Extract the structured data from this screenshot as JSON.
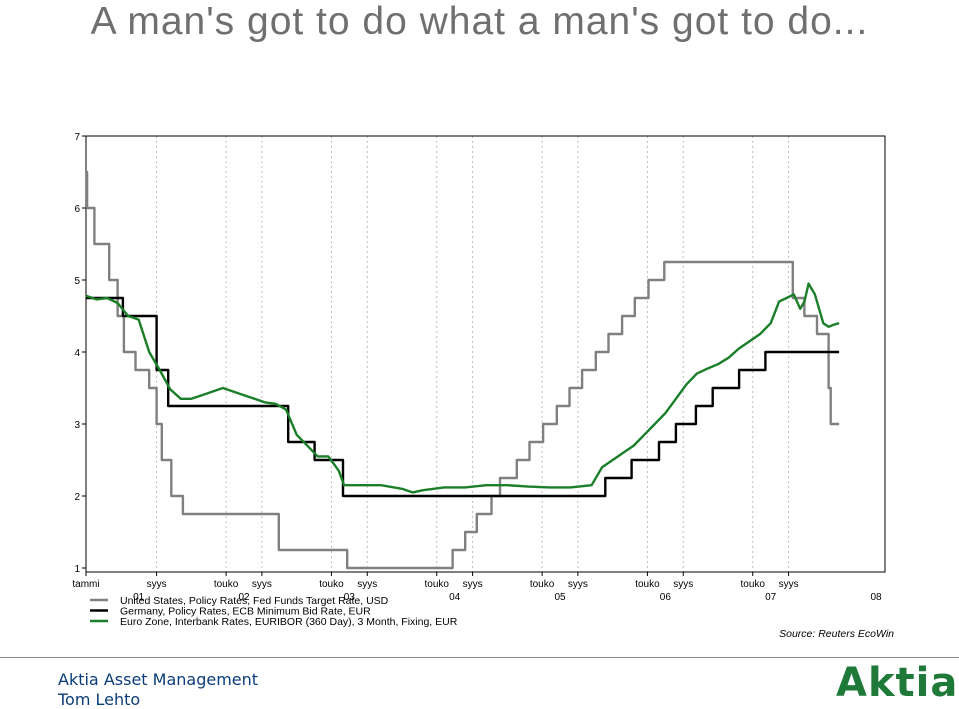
{
  "slide": {
    "title": "A man's got to do what a man's got to do...",
    "footer_company": "Aktia Asset Management",
    "footer_author": "Tom Lehto",
    "logo_text": "Aktia"
  },
  "chart_data": {
    "type": "line",
    "title": "",
    "xlabel": "",
    "ylabel": "",
    "ylim": [
      1,
      7
    ],
    "y_ticks": [
      "1",
      "2",
      "3",
      "4",
      "5",
      "6",
      "7"
    ],
    "x_range_years": [
      2001.0,
      2008.5
    ],
    "x_tick_labels_top": [
      {
        "t": 2001.0,
        "label": "tammi"
      },
      {
        "t": 2001.67,
        "label": "syys"
      },
      {
        "t": 2002.33,
        "label": "touko"
      },
      {
        "t": 2002.67,
        "label": "syys"
      },
      {
        "t": 2003.33,
        "label": "touko"
      },
      {
        "t": 2003.67,
        "label": "syys"
      },
      {
        "t": 2004.33,
        "label": "touko"
      },
      {
        "t": 2004.67,
        "label": "syys"
      },
      {
        "t": 2005.33,
        "label": "touko"
      },
      {
        "t": 2005.67,
        "label": "syys"
      },
      {
        "t": 2006.33,
        "label": "touko"
      },
      {
        "t": 2006.67,
        "label": "syys"
      },
      {
        "t": 2007.33,
        "label": "touko"
      },
      {
        "t": 2007.67,
        "label": "syys"
      }
    ],
    "x_tick_labels_bottom": [
      {
        "t": 2001.5,
        "label": "01"
      },
      {
        "t": 2002.5,
        "label": "02"
      },
      {
        "t": 2003.5,
        "label": "03"
      },
      {
        "t": 2004.5,
        "label": "04"
      },
      {
        "t": 2005.5,
        "label": "05"
      },
      {
        "t": 2006.5,
        "label": "06"
      },
      {
        "t": 2007.5,
        "label": "07"
      },
      {
        "t": 2008.5,
        "label": "08"
      }
    ],
    "grid": "vertical-dotted",
    "legend_position": "bottom-left",
    "source": "Source: Reuters EcoWin",
    "series": [
      {
        "name": "United States, Policy Rates, Fed Funds Target Rate, USD",
        "color": "#808080",
        "step": true,
        "points": [
          [
            2001.0,
            6.5
          ],
          [
            2001.01,
            6.0
          ],
          [
            2001.08,
            5.5
          ],
          [
            2001.22,
            5.0
          ],
          [
            2001.3,
            4.5
          ],
          [
            2001.36,
            4.0
          ],
          [
            2001.47,
            3.75
          ],
          [
            2001.6,
            3.5
          ],
          [
            2001.67,
            3.0
          ],
          [
            2001.72,
            2.5
          ],
          [
            2001.81,
            2.0
          ],
          [
            2001.92,
            1.75
          ],
          [
            2002.83,
            1.25
          ],
          [
            2003.48,
            1.0
          ],
          [
            2004.48,
            1.25
          ],
          [
            2004.6,
            1.5
          ],
          [
            2004.71,
            1.75
          ],
          [
            2004.85,
            2.0
          ],
          [
            2004.93,
            2.25
          ],
          [
            2005.09,
            2.5
          ],
          [
            2005.21,
            2.75
          ],
          [
            2005.34,
            3.0
          ],
          [
            2005.47,
            3.25
          ],
          [
            2005.59,
            3.5
          ],
          [
            2005.71,
            3.75
          ],
          [
            2005.84,
            4.0
          ],
          [
            2005.96,
            4.25
          ],
          [
            2006.09,
            4.5
          ],
          [
            2006.21,
            4.75
          ],
          [
            2006.34,
            5.0
          ],
          [
            2006.49,
            5.25
          ],
          [
            2007.71,
            4.75
          ],
          [
            2007.82,
            4.5
          ],
          [
            2007.94,
            4.25
          ],
          [
            2008.05,
            3.5
          ],
          [
            2008.07,
            3.0
          ],
          [
            2008.15,
            3.0
          ]
        ]
      },
      {
        "name": "Germany, Policy Rates, ECB Minimum Bid Rate, EUR",
        "color": "#000000",
        "step": true,
        "points": [
          [
            2001.0,
            4.75
          ],
          [
            2001.35,
            4.5
          ],
          [
            2001.67,
            3.75
          ],
          [
            2001.78,
            3.25
          ],
          [
            2002.92,
            2.75
          ],
          [
            2003.17,
            2.5
          ],
          [
            2003.44,
            2.0
          ],
          [
            2005.93,
            2.25
          ],
          [
            2006.18,
            2.5
          ],
          [
            2006.44,
            2.75
          ],
          [
            2006.6,
            3.0
          ],
          [
            2006.79,
            3.25
          ],
          [
            2006.95,
            3.5
          ],
          [
            2007.2,
            3.75
          ],
          [
            2007.45,
            4.0
          ],
          [
            2008.15,
            4.0
          ]
        ]
      },
      {
        "name": "Euro Zone, Interbank Rates, EURIBOR (360 Day), 3 Month, Fixing, EUR",
        "color": "#1a7f28",
        "step": false,
        "points": [
          [
            2001.0,
            4.78
          ],
          [
            2001.1,
            4.73
          ],
          [
            2001.2,
            4.75
          ],
          [
            2001.3,
            4.68
          ],
          [
            2001.4,
            4.5
          ],
          [
            2001.5,
            4.45
          ],
          [
            2001.6,
            4.0
          ],
          [
            2001.7,
            3.75
          ],
          [
            2001.8,
            3.48
          ],
          [
            2001.9,
            3.35
          ],
          [
            2002.0,
            3.35
          ],
          [
            2002.1,
            3.4
          ],
          [
            2002.2,
            3.45
          ],
          [
            2002.3,
            3.5
          ],
          [
            2002.4,
            3.45
          ],
          [
            2002.5,
            3.4
          ],
          [
            2002.6,
            3.35
          ],
          [
            2002.7,
            3.3
          ],
          [
            2002.8,
            3.28
          ],
          [
            2002.9,
            3.2
          ],
          [
            2003.0,
            2.85
          ],
          [
            2003.1,
            2.7
          ],
          [
            2003.2,
            2.55
          ],
          [
            2003.3,
            2.55
          ],
          [
            2003.4,
            2.35
          ],
          [
            2003.45,
            2.15
          ],
          [
            2003.6,
            2.15
          ],
          [
            2003.8,
            2.15
          ],
          [
            2004.0,
            2.1
          ],
          [
            2004.1,
            2.05
          ],
          [
            2004.2,
            2.08
          ],
          [
            2004.4,
            2.12
          ],
          [
            2004.6,
            2.12
          ],
          [
            2004.8,
            2.15
          ],
          [
            2005.0,
            2.15
          ],
          [
            2005.2,
            2.13
          ],
          [
            2005.4,
            2.12
          ],
          [
            2005.6,
            2.12
          ],
          [
            2005.8,
            2.15
          ],
          [
            2005.9,
            2.4
          ],
          [
            2006.0,
            2.5
          ],
          [
            2006.1,
            2.6
          ],
          [
            2006.2,
            2.7
          ],
          [
            2006.3,
            2.85
          ],
          [
            2006.4,
            3.0
          ],
          [
            2006.5,
            3.15
          ],
          [
            2006.6,
            3.35
          ],
          [
            2006.7,
            3.55
          ],
          [
            2006.8,
            3.7
          ],
          [
            2006.9,
            3.77
          ],
          [
            2007.0,
            3.83
          ],
          [
            2007.1,
            3.92
          ],
          [
            2007.2,
            4.05
          ],
          [
            2007.3,
            4.15
          ],
          [
            2007.4,
            4.25
          ],
          [
            2007.5,
            4.4
          ],
          [
            2007.58,
            4.7
          ],
          [
            2007.65,
            4.75
          ],
          [
            2007.72,
            4.8
          ],
          [
            2007.78,
            4.6
          ],
          [
            2007.82,
            4.7
          ],
          [
            2007.86,
            4.95
          ],
          [
            2007.92,
            4.8
          ],
          [
            2007.96,
            4.6
          ],
          [
            2008.0,
            4.4
          ],
          [
            2008.05,
            4.35
          ],
          [
            2008.1,
            4.38
          ],
          [
            2008.15,
            4.4
          ]
        ]
      }
    ]
  }
}
